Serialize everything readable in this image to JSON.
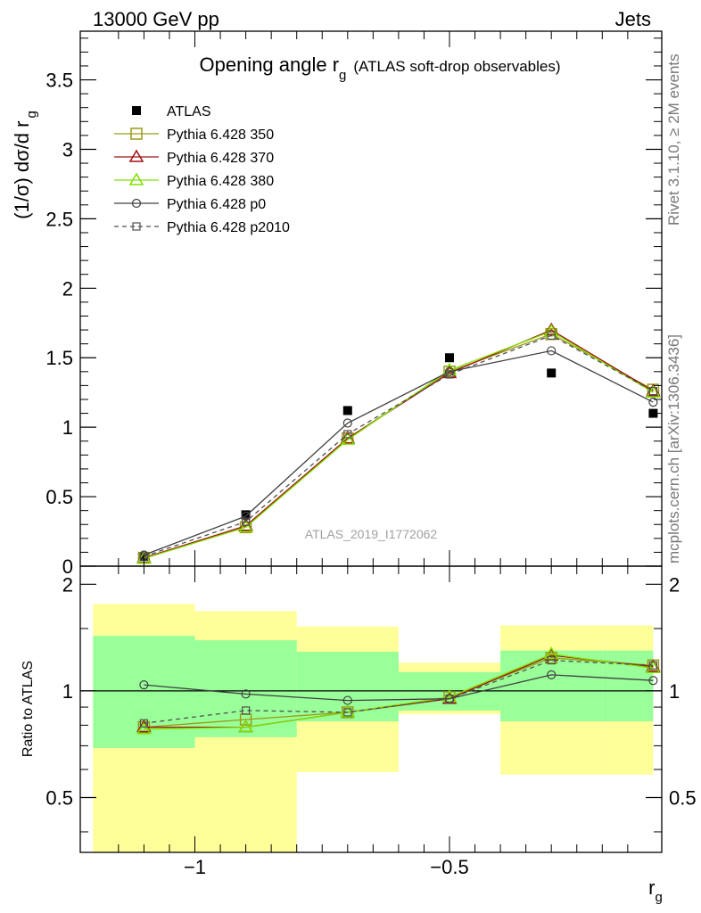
{
  "header": {
    "energy_label": "13000 GeV pp",
    "process_label": "Jets"
  },
  "side_labels": {
    "rivet": "Rivet 3.1.10, ≥ 2M events",
    "mcplots": "mcplots.cern.ch [arXiv:1306.3436]"
  },
  "watermark": "ATLAS_2019_I1772062",
  "chart_data": [
    {
      "panel": "main",
      "type": "line",
      "title": "Opening angle r",
      "title_sub": "g",
      "title_suffix": "(ATLAS soft-drop observables)",
      "ylabel": "(1/σ) dσ/d r",
      "ylabel_sub": "g",
      "xlim": [
        -1.2,
        -0.1
      ],
      "ylim": [
        0,
        3.85
      ],
      "yticks": [
        0,
        0.5,
        1,
        1.5,
        2,
        2.5,
        3,
        3.5
      ],
      "ytick_labels": [
        "0",
        "0.5",
        "1",
        "1.5",
        "2",
        "2.5",
        "3",
        "3.5"
      ],
      "x": [
        -1.1,
        -0.9,
        -0.7,
        -0.5,
        -0.3,
        -0.1
      ],
      "series": [
        {
          "name": "ATLAS",
          "values": [
            0.07,
            0.37,
            1.12,
            1.5,
            1.39,
            1.1
          ],
          "color": "#000000",
          "marker": "square-filled",
          "dash": "none"
        },
        {
          "name": "Pythia 6.428 350",
          "values": [
            0.06,
            0.28,
            0.92,
            1.4,
            1.67,
            1.27
          ],
          "color": "#9a9a18",
          "marker": "square-open",
          "dash": "solid"
        },
        {
          "name": "Pythia 6.428 370",
          "values": [
            0.06,
            0.29,
            0.92,
            1.39,
            1.7,
            1.26
          ],
          "color": "#a01010",
          "marker": "triangle-open",
          "dash": "solid"
        },
        {
          "name": "Pythia 6.428 380",
          "values": [
            0.055,
            0.28,
            0.91,
            1.41,
            1.69,
            1.25
          ],
          "color": "#80e000",
          "marker": "triangle-open",
          "dash": "solid"
        },
        {
          "name": "Pythia 6.428 p0",
          "values": [
            0.08,
            0.36,
            1.03,
            1.4,
            1.55,
            1.18
          ],
          "color": "#404040",
          "marker": "circle-open",
          "dash": "solid"
        },
        {
          "name": "Pythia 6.428 p2010",
          "values": [
            0.07,
            0.32,
            0.95,
            1.38,
            1.66,
            1.26
          ],
          "color": "#505050",
          "marker": "square-open-small",
          "dash": "dashed"
        }
      ]
    },
    {
      "panel": "ratio",
      "type": "line",
      "ylabel": "Ratio to ATLAS",
      "xlabel": "r",
      "xlabel_sub": "g",
      "xlim": [
        -1.2,
        -0.1
      ],
      "ylim": [
        0.35,
        2.25
      ],
      "reference_line": 1,
      "yticks": [
        0.5,
        1,
        2
      ],
      "ytick_labels": [
        "0.5",
        "1",
        "2"
      ],
      "xticks": [
        -1,
        -0.5
      ],
      "xtick_labels": [
        "−1",
        "−0.5"
      ],
      "bins": [
        [
          -1.2,
          -1.0
        ],
        [
          -1.0,
          -0.8
        ],
        [
          -0.8,
          -0.6
        ],
        [
          -0.6,
          -0.4
        ],
        [
          -0.4,
          -0.2
        ],
        [
          -0.2,
          -0.1
        ]
      ],
      "band_inner": [
        [
          0.69,
          1.43
        ],
        [
          0.74,
          1.39
        ],
        [
          0.82,
          1.29
        ],
        [
          0.88,
          1.13
        ],
        [
          0.82,
          1.3
        ],
        [
          0.82,
          1.3
        ]
      ],
      "band_outer": [
        [
          0.35,
          1.76
        ],
        [
          0.35,
          1.68
        ],
        [
          0.59,
          1.52
        ],
        [
          0.86,
          1.2
        ],
        [
          0.58,
          1.53
        ],
        [
          0.58,
          1.53
        ]
      ],
      "x": [
        -1.1,
        -0.9,
        -0.7,
        -0.5,
        -0.3,
        -0.1
      ],
      "series": [
        {
          "name": "Pythia 6.428 350",
          "values": [
            0.79,
            0.83,
            0.87,
            0.96,
            1.24,
            1.18
          ],
          "color": "#9a9a18",
          "marker": "square-open",
          "dash": "solid"
        },
        {
          "name": "Pythia 6.428 370",
          "values": [
            0.79,
            0.79,
            0.87,
            0.95,
            1.26,
            1.17
          ],
          "color": "#a01010",
          "marker": "triangle-open",
          "dash": "solid"
        },
        {
          "name": "Pythia 6.428 380",
          "values": [
            0.78,
            0.79,
            0.87,
            0.96,
            1.27,
            1.16
          ],
          "color": "#80e000",
          "marker": "triangle-open",
          "dash": "solid"
        },
        {
          "name": "Pythia 6.428 p0",
          "values": [
            1.04,
            0.98,
            0.94,
            0.95,
            1.11,
            1.07
          ],
          "color": "#404040",
          "marker": "circle-open",
          "dash": "solid"
        },
        {
          "name": "Pythia 6.428 p2010",
          "values": [
            0.81,
            0.88,
            0.87,
            0.95,
            1.22,
            1.18
          ],
          "color": "#505050",
          "marker": "square-open-small",
          "dash": "dashed"
        }
      ]
    }
  ]
}
